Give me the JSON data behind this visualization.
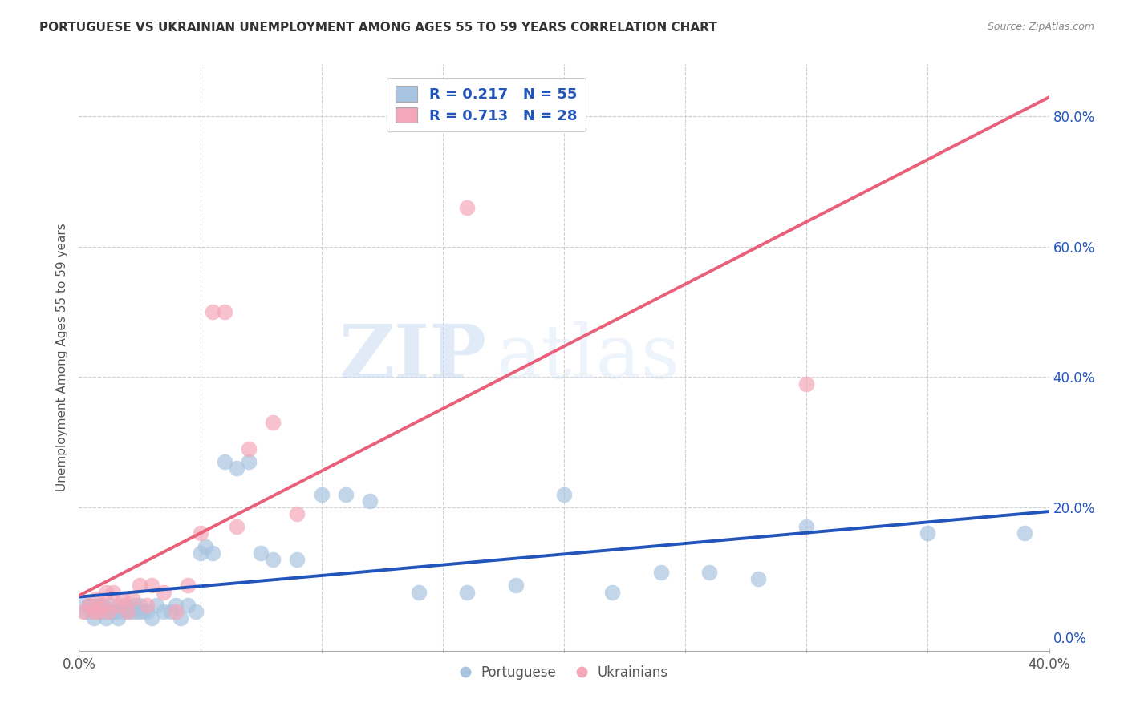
{
  "title": "PORTUGUESE VS UKRAINIAN UNEMPLOYMENT AMONG AGES 55 TO 59 YEARS CORRELATION CHART",
  "source": "Source: ZipAtlas.com",
  "ylabel": "Unemployment Among Ages 55 to 59 years",
  "xlim": [
    0.0,
    0.4
  ],
  "ylim": [
    -0.02,
    0.88
  ],
  "xticks": [
    0.0,
    0.4
  ],
  "yticks": [
    0.0,
    0.2,
    0.4,
    0.6,
    0.8
  ],
  "portuguese_color": "#a8c4e0",
  "ukrainian_color": "#f4a7b9",
  "line_blue": "#2255bb",
  "line_pink": "#e8607a",
  "legend_text_color": "#2255bb",
  "portuguese_r": 0.217,
  "portuguese_n": 55,
  "ukrainian_r": 0.713,
  "ukrainian_n": 28,
  "portuguese_x": [
    0.002,
    0.003,
    0.004,
    0.005,
    0.006,
    0.007,
    0.008,
    0.009,
    0.01,
    0.011,
    0.012,
    0.013,
    0.014,
    0.015,
    0.016,
    0.018,
    0.019,
    0.02,
    0.022,
    0.023,
    0.024,
    0.025,
    0.026,
    0.028,
    0.03,
    0.032,
    0.035,
    0.038,
    0.04,
    0.042,
    0.045,
    0.048,
    0.05,
    0.052,
    0.055,
    0.06,
    0.065,
    0.07,
    0.075,
    0.08,
    0.09,
    0.1,
    0.11,
    0.12,
    0.14,
    0.16,
    0.18,
    0.2,
    0.22,
    0.24,
    0.26,
    0.28,
    0.3,
    0.35,
    0.39
  ],
  "portuguese_y": [
    0.05,
    0.04,
    0.05,
    0.04,
    0.03,
    0.05,
    0.04,
    0.05,
    0.04,
    0.03,
    0.04,
    0.05,
    0.04,
    0.04,
    0.03,
    0.04,
    0.05,
    0.04,
    0.04,
    0.05,
    0.04,
    0.05,
    0.04,
    0.04,
    0.03,
    0.05,
    0.04,
    0.04,
    0.05,
    0.03,
    0.05,
    0.04,
    0.13,
    0.14,
    0.13,
    0.27,
    0.26,
    0.27,
    0.13,
    0.12,
    0.12,
    0.22,
    0.22,
    0.21,
    0.07,
    0.07,
    0.08,
    0.22,
    0.07,
    0.1,
    0.1,
    0.09,
    0.17,
    0.16,
    0.16
  ],
  "ukrainian_x": [
    0.002,
    0.004,
    0.006,
    0.007,
    0.008,
    0.01,
    0.011,
    0.012,
    0.014,
    0.016,
    0.018,
    0.02,
    0.022,
    0.025,
    0.028,
    0.03,
    0.035,
    0.04,
    0.045,
    0.05,
    0.055,
    0.06,
    0.065,
    0.07,
    0.08,
    0.09,
    0.16,
    0.3
  ],
  "ukrainian_y": [
    0.04,
    0.05,
    0.04,
    0.06,
    0.04,
    0.05,
    0.07,
    0.04,
    0.07,
    0.05,
    0.06,
    0.04,
    0.06,
    0.08,
    0.05,
    0.08,
    0.07,
    0.04,
    0.08,
    0.16,
    0.5,
    0.5,
    0.17,
    0.29,
    0.33,
    0.19,
    0.66,
    0.39
  ],
  "watermark_zip": "ZIP",
  "watermark_atlas": "atlas",
  "background_color": "#ffffff",
  "grid_color": "#d0d0d0",
  "grid_yticks": [
    0.2,
    0.4,
    0.6,
    0.8
  ],
  "grid_xticks": [
    0.05,
    0.1,
    0.15,
    0.2,
    0.25,
    0.3,
    0.35
  ]
}
